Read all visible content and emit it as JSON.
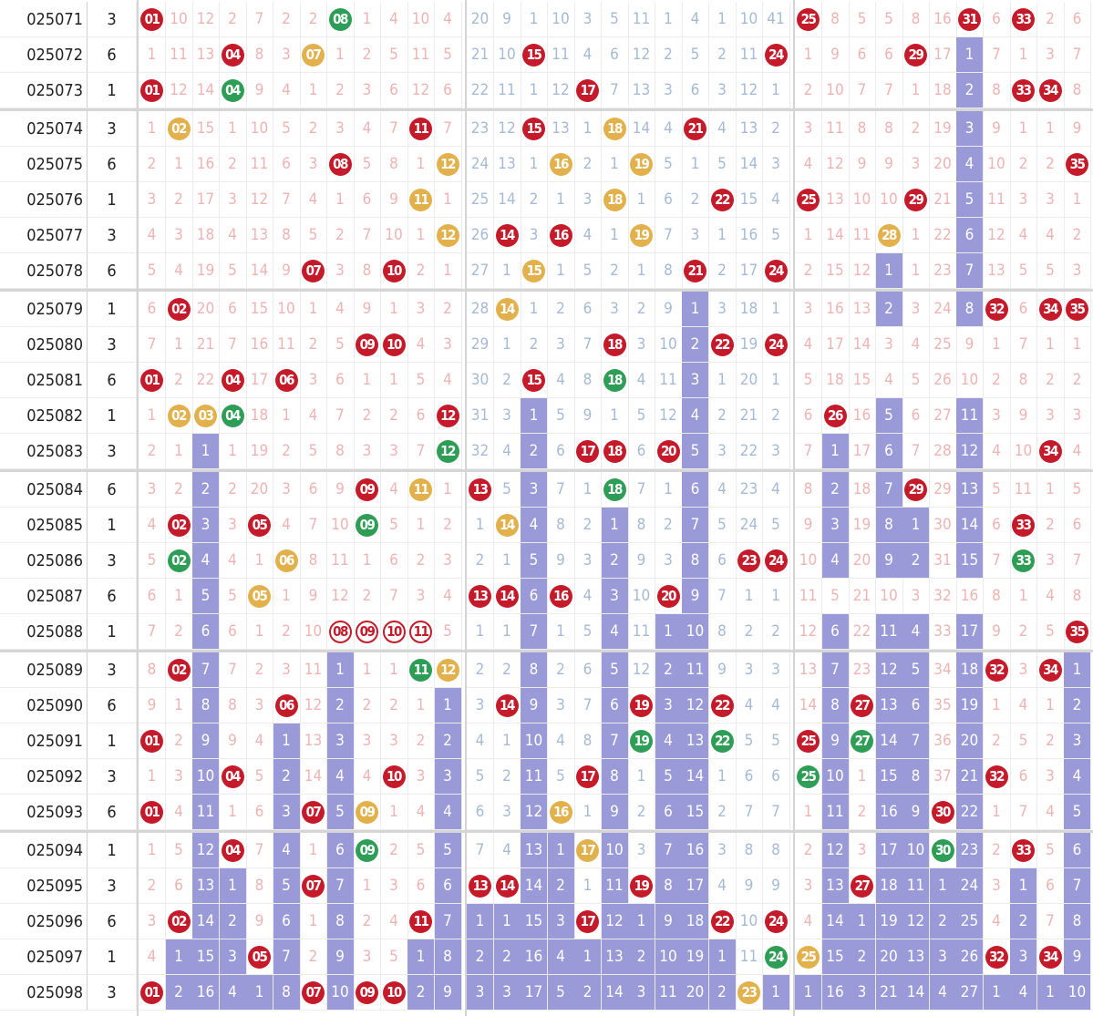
{
  "colors": {
    "red_ball": "#c51a2a",
    "green_ball": "#2e9e56",
    "yellow_ball": "#e2b14c",
    "run_fill": "#9a9ad8",
    "miss_text": "#f0b3b3"
  },
  "rows": [
    {
      "issue": "025071",
      "sum": "3",
      "c": [
        "R01",
        "10",
        "12",
        "2",
        "7",
        "2",
        "2",
        "G08",
        "1",
        "4",
        "10",
        "4",
        "20",
        "9",
        "1",
        "10",
        "3",
        "5",
        "11",
        "1",
        "4",
        "1",
        "10",
        "41",
        "R25",
        "8",
        "5",
        "5",
        "8",
        "16",
        "R31",
        "6",
        "R33",
        "2",
        "6"
      ]
    },
    {
      "issue": "025072",
      "sum": "6",
      "c": [
        "1",
        "11",
        "13",
        "R04",
        "8",
        "3",
        "Y07",
        "1",
        "2",
        "5",
        "11",
        "5",
        "21",
        "10",
        "R15",
        "11",
        "4",
        "6",
        "12",
        "2",
        "5",
        "2",
        "11",
        "R24",
        "1",
        "9",
        "6",
        "6",
        "R29",
        "17",
        "F1",
        "7",
        "1",
        "3",
        "7"
      ]
    },
    {
      "issue": "025073",
      "sum": "1",
      "c": [
        "R01",
        "12",
        "14",
        "G04",
        "9",
        "4",
        "1",
        "2",
        "3",
        "6",
        "12",
        "6",
        "22",
        "11",
        "1",
        "12",
        "R17",
        "7",
        "13",
        "3",
        "6",
        "3",
        "12",
        "1",
        "2",
        "10",
        "7",
        "7",
        "1",
        "18",
        "F2",
        "8",
        "R33",
        "R34",
        "8"
      ]
    },
    {
      "issue": "025074",
      "sum": "3",
      "c": [
        "1",
        "Y02",
        "15",
        "1",
        "10",
        "5",
        "2",
        "3",
        "4",
        "7",
        "R11",
        "7",
        "23",
        "12",
        "R15",
        "13",
        "1",
        "Y18",
        "14",
        "4",
        "R21",
        "4",
        "13",
        "2",
        "3",
        "11",
        "8",
        "8",
        "2",
        "19",
        "F3",
        "9",
        "1",
        "1",
        "9"
      ]
    },
    {
      "issue": "025075",
      "sum": "6",
      "c": [
        "2",
        "1",
        "16",
        "2",
        "11",
        "6",
        "3",
        "R08",
        "5",
        "8",
        "1",
        "Y12",
        "24",
        "13",
        "1",
        "Y16",
        "2",
        "1",
        "Y19",
        "5",
        "1",
        "5",
        "14",
        "3",
        "4",
        "12",
        "9",
        "9",
        "3",
        "20",
        "F4",
        "10",
        "2",
        "2",
        "R35"
      ]
    },
    {
      "issue": "025076",
      "sum": "1",
      "c": [
        "3",
        "2",
        "17",
        "3",
        "12",
        "7",
        "4",
        "1",
        "6",
        "9",
        "Y11",
        "1",
        "25",
        "14",
        "2",
        "1",
        "3",
        "Y18",
        "1",
        "6",
        "2",
        "R22",
        "15",
        "4",
        "R25",
        "13",
        "10",
        "10",
        "R29",
        "21",
        "F5",
        "11",
        "3",
        "3",
        "1"
      ]
    },
    {
      "issue": "025077",
      "sum": "3",
      "c": [
        "4",
        "3",
        "18",
        "4",
        "13",
        "8",
        "5",
        "2",
        "7",
        "10",
        "1",
        "Y12",
        "26",
        "R14",
        "3",
        "R16",
        "4",
        "1",
        "Y19",
        "7",
        "3",
        "1",
        "16",
        "5",
        "1",
        "14",
        "11",
        "Y28",
        "1",
        "22",
        "F6",
        "12",
        "4",
        "4",
        "2"
      ]
    },
    {
      "issue": "025078",
      "sum": "6",
      "c": [
        "5",
        "4",
        "19",
        "5",
        "14",
        "9",
        "R07",
        "3",
        "8",
        "R10",
        "2",
        "1",
        "27",
        "1",
        "Y15",
        "1",
        "5",
        "2",
        "1",
        "8",
        "R21",
        "2",
        "17",
        "R24",
        "2",
        "15",
        "12",
        "F1",
        "1",
        "23",
        "F7",
        "13",
        "5",
        "5",
        "3"
      ]
    },
    {
      "issue": "025079",
      "sum": "1",
      "c": [
        "6",
        "R02",
        "20",
        "6",
        "15",
        "10",
        "1",
        "4",
        "9",
        "1",
        "3",
        "2",
        "28",
        "Y14",
        "1",
        "2",
        "6",
        "3",
        "2",
        "9",
        "F1",
        "3",
        "18",
        "1",
        "3",
        "16",
        "13",
        "F2",
        "3",
        "24",
        "F8",
        "R32",
        "6",
        "R34",
        "R35"
      ]
    },
    {
      "issue": "025080",
      "sum": "3",
      "c": [
        "7",
        "1",
        "21",
        "7",
        "16",
        "11",
        "2",
        "5",
        "R09",
        "R10",
        "4",
        "3",
        "29",
        "1",
        "2",
        "3",
        "7",
        "R18",
        "3",
        "10",
        "F2",
        "R22",
        "19",
        "R24",
        "4",
        "17",
        "14",
        "3",
        "4",
        "25",
        "9",
        "1",
        "7",
        "1",
        "1"
      ]
    },
    {
      "issue": "025081",
      "sum": "6",
      "c": [
        "R01",
        "2",
        "22",
        "R04",
        "17",
        "R06",
        "3",
        "6",
        "1",
        "1",
        "5",
        "4",
        "30",
        "2",
        "R15",
        "4",
        "8",
        "G18",
        "4",
        "11",
        "F3",
        "1",
        "20",
        "1",
        "5",
        "18",
        "15",
        "4",
        "5",
        "26",
        "10",
        "2",
        "8",
        "2",
        "2"
      ]
    },
    {
      "issue": "025082",
      "sum": "1",
      "c": [
        "1",
        "Y02",
        "Y03",
        "G04",
        "18",
        "1",
        "4",
        "7",
        "2",
        "2",
        "6",
        "R12",
        "31",
        "3",
        "F1",
        "5",
        "9",
        "1",
        "5",
        "12",
        "F4",
        "2",
        "21",
        "2",
        "6",
        "R26",
        "16",
        "F5",
        "6",
        "27",
        "F11",
        "3",
        "9",
        "3",
        "3"
      ]
    },
    {
      "issue": "025083",
      "sum": "3",
      "c": [
        "2",
        "1",
        "F1",
        "1",
        "19",
        "2",
        "5",
        "8",
        "3",
        "3",
        "7",
        "G12",
        "32",
        "4",
        "F2",
        "6",
        "R17",
        "R18",
        "6",
        "R20",
        "F5",
        "3",
        "22",
        "3",
        "7",
        "F1",
        "17",
        "F6",
        "7",
        "28",
        "F12",
        "4",
        "10",
        "R34",
        "4"
      ]
    },
    {
      "issue": "025084",
      "sum": "6",
      "c": [
        "3",
        "2",
        "F2",
        "2",
        "20",
        "3",
        "6",
        "9",
        "R09",
        "4",
        "Y11",
        "1",
        "R13",
        "5",
        "F3",
        "7",
        "1",
        "G18",
        "7",
        "1",
        "F6",
        "4",
        "23",
        "4",
        "8",
        "F2",
        "18",
        "F7",
        "R29",
        "29",
        "F13",
        "5",
        "11",
        "1",
        "5"
      ]
    },
    {
      "issue": "025085",
      "sum": "1",
      "c": [
        "4",
        "R02",
        "F3",
        "3",
        "R05",
        "4",
        "7",
        "10",
        "G09",
        "5",
        "1",
        "2",
        "1",
        "Y14",
        "F4",
        "8",
        "2",
        "F1",
        "8",
        "2",
        "F7",
        "5",
        "24",
        "5",
        "9",
        "F3",
        "19",
        "F8",
        "F1",
        "30",
        "F14",
        "6",
        "R33",
        "2",
        "6"
      ]
    },
    {
      "issue": "025086",
      "sum": "3",
      "c": [
        "5",
        "G02",
        "F4",
        "4",
        "1",
        "Y06",
        "8",
        "11",
        "1",
        "6",
        "2",
        "3",
        "2",
        "1",
        "F5",
        "9",
        "3",
        "F2",
        "9",
        "3",
        "F8",
        "6",
        "R23",
        "R24",
        "10",
        "F4",
        "20",
        "F9",
        "F2",
        "31",
        "F15",
        "7",
        "G33",
        "3",
        "7"
      ]
    },
    {
      "issue": "025087",
      "sum": "6",
      "c": [
        "6",
        "1",
        "F5",
        "5",
        "Y05",
        "1",
        "9",
        "12",
        "2",
        "7",
        "3",
        "4",
        "R13",
        "R14",
        "F6",
        "R16",
        "4",
        "F3",
        "10",
        "R20",
        "F9",
        "7",
        "1",
        "1",
        "11",
        "5",
        "21",
        "10",
        "3",
        "32",
        "16",
        "8",
        "1",
        "4",
        "8"
      ]
    },
    {
      "issue": "025088",
      "sum": "1",
      "c": [
        "7",
        "2",
        "F6",
        "6",
        "1",
        "2",
        "10",
        "O08",
        "O09",
        "O10",
        "O11",
        "5",
        "1",
        "1",
        "F7",
        "1",
        "5",
        "F4",
        "11",
        "F1",
        "F10",
        "8",
        "2",
        "2",
        "12",
        "F6",
        "22",
        "F11",
        "F4",
        "33",
        "F17",
        "9",
        "2",
        "5",
        "R35"
      ]
    },
    {
      "issue": "025089",
      "sum": "3",
      "c": [
        "8",
        "R02",
        "F7",
        "7",
        "2",
        "3",
        "11",
        "F1",
        "1",
        "1",
        "G11",
        "Y12",
        "2",
        "2",
        "F8",
        "2",
        "6",
        "F5",
        "12",
        "F2",
        "F11",
        "9",
        "3",
        "3",
        "13",
        "F7",
        "23",
        "F12",
        "F5",
        "34",
        "F18",
        "R32",
        "3",
        "R34",
        "F1"
      ]
    },
    {
      "issue": "025090",
      "sum": "6",
      "c": [
        "9",
        "1",
        "F8",
        "8",
        "3",
        "R06",
        "12",
        "F2",
        "2",
        "2",
        "1",
        "F1",
        "3",
        "R14",
        "F9",
        "3",
        "7",
        "F6",
        "R19",
        "F3",
        "F12",
        "R22",
        "4",
        "4",
        "14",
        "F8",
        "R27",
        "F13",
        "F6",
        "35",
        "F19",
        "1",
        "4",
        "1",
        "F2"
      ]
    },
    {
      "issue": "025091",
      "sum": "1",
      "c": [
        "R01",
        "2",
        "F9",
        "9",
        "4",
        "F1",
        "13",
        "F3",
        "3",
        "3",
        "2",
        "F2",
        "4",
        "1",
        "F10",
        "4",
        "8",
        "F7",
        "G19",
        "F4",
        "F13",
        "G22",
        "5",
        "5",
        "R25",
        "F9",
        "G27",
        "F14",
        "F7",
        "36",
        "F20",
        "2",
        "5",
        "2",
        "F3"
      ]
    },
    {
      "issue": "025092",
      "sum": "3",
      "c": [
        "1",
        "3",
        "F10",
        "R04",
        "5",
        "F2",
        "14",
        "F4",
        "4",
        "R10",
        "3",
        "F3",
        "5",
        "2",
        "F11",
        "5",
        "R17",
        "F8",
        "1",
        "F5",
        "F14",
        "1",
        "6",
        "6",
        "G25",
        "F10",
        "1",
        "F15",
        "F8",
        "37",
        "F21",
        "R32",
        "6",
        "3",
        "F4"
      ]
    },
    {
      "issue": "025093",
      "sum": "6",
      "c": [
        "R01",
        "4",
        "F11",
        "1",
        "6",
        "F3",
        "R07",
        "F5",
        "Y09",
        "1",
        "4",
        "F4",
        "6",
        "3",
        "F12",
        "Y16",
        "1",
        "F9",
        "2",
        "F6",
        "F15",
        "2",
        "7",
        "7",
        "1",
        "F11",
        "2",
        "F16",
        "F9",
        "R30",
        "F22",
        "1",
        "7",
        "4",
        "F5"
      ]
    },
    {
      "issue": "025094",
      "sum": "1",
      "c": [
        "1",
        "5",
        "F12",
        "R04",
        "7",
        "F4",
        "1",
        "F6",
        "G09",
        "2",
        "5",
        "F5",
        "7",
        "4",
        "F13",
        "F1",
        "Y17",
        "F10",
        "3",
        "F7",
        "F16",
        "3",
        "8",
        "8",
        "2",
        "F12",
        "3",
        "F17",
        "F10",
        "G30",
        "F23",
        "2",
        "R33",
        "5",
        "F6"
      ]
    },
    {
      "issue": "025095",
      "sum": "3",
      "c": [
        "2",
        "6",
        "F13",
        "F1",
        "8",
        "F5",
        "R07",
        "F7",
        "1",
        "3",
        "6",
        "F6",
        "R13",
        "R14",
        "F14",
        "F2",
        "1",
        "F11",
        "R19",
        "F8",
        "F17",
        "4",
        "9",
        "9",
        "3",
        "F13",
        "R27",
        "F18",
        "F11",
        "F1",
        "F24",
        "3",
        "F1",
        "6",
        "F7"
      ]
    },
    {
      "issue": "025096",
      "sum": "6",
      "c": [
        "3",
        "R02",
        "F14",
        "F2",
        "9",
        "F6",
        "1",
        "F8",
        "2",
        "4",
        "R11",
        "F7",
        "F1",
        "F1",
        "F15",
        "F3",
        "R17",
        "F12",
        "F1",
        "F9",
        "F18",
        "R22",
        "10",
        "R24",
        "4",
        "F14",
        "F1",
        "F19",
        "F12",
        "F2",
        "F25",
        "4",
        "F2",
        "7",
        "F8"
      ]
    },
    {
      "issue": "025097",
      "sum": "1",
      "c": [
        "4",
        "F1",
        "F15",
        "F3",
        "R05",
        "F7",
        "2",
        "F9",
        "3",
        "5",
        "F1",
        "F8",
        "F2",
        "F2",
        "F16",
        "F4",
        "F1",
        "F13",
        "F2",
        "F10",
        "F19",
        "F1",
        "11",
        "G24",
        "Y25",
        "F15",
        "F2",
        "F20",
        "F13",
        "F3",
        "F26",
        "R32",
        "F3",
        "R34",
        "F9"
      ]
    },
    {
      "issue": "025098",
      "sum": "3",
      "c": [
        "R01",
        "F2",
        "F16",
        "F4",
        "F1",
        "F8",
        "R07",
        "F10",
        "R09",
        "R10",
        "F2",
        "F9",
        "F3",
        "F3",
        "F17",
        "F5",
        "F2",
        "F14",
        "F3",
        "F11",
        "F20",
        "F2",
        "Y23",
        "F1",
        "F1",
        "F16",
        "F3",
        "F21",
        "F14",
        "F4",
        "F27",
        "F1",
        "F4",
        "F1",
        "F10"
      ]
    }
  ]
}
